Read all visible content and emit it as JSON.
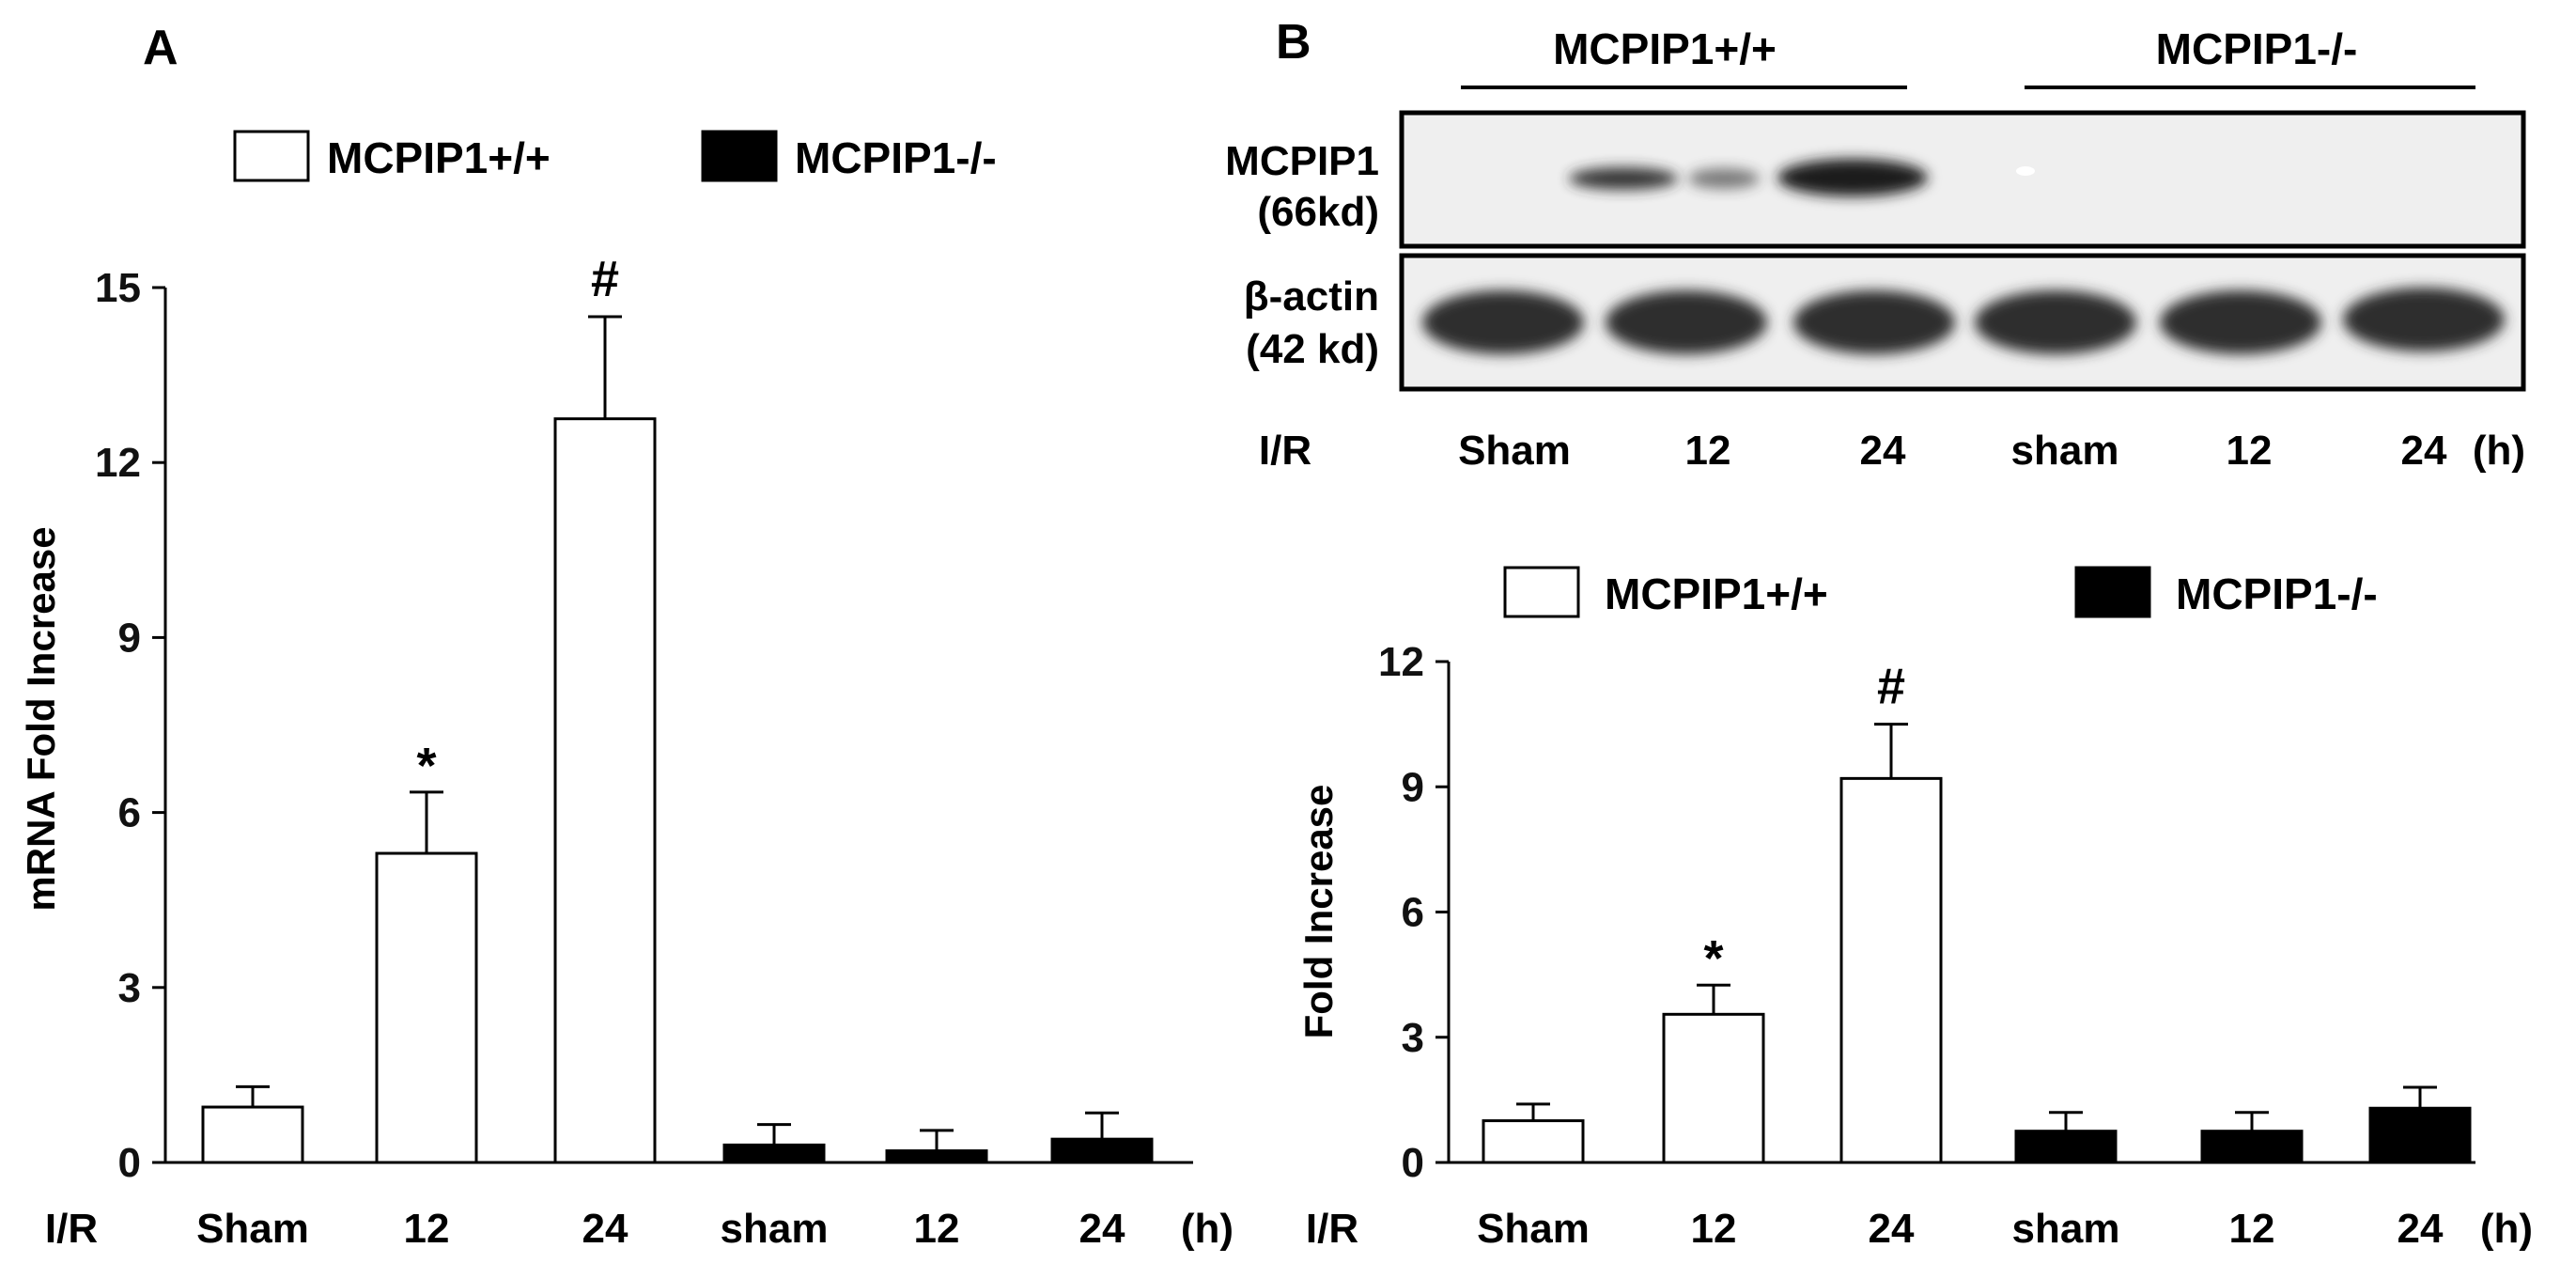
{
  "panels": {
    "A": "A",
    "B": "B"
  },
  "colors": {
    "wildtype_fill": "#ffffff",
    "knockout_fill": "#000000",
    "blot_background": "#efefef",
    "band_color": "#2e2e2e"
  },
  "blot": {
    "group_labels": [
      "MCPIP1+/+",
      "MCPIP1-/-"
    ],
    "row_labels": [
      {
        "line1": "MCPIP1",
        "line2": "(66kd)"
      },
      {
        "line1": "β-actin",
        "line2": "(42 kd)"
      }
    ],
    "lane_prefix": "I/R",
    "lanes": [
      "Sham",
      "12",
      "24",
      "sham",
      "12",
      "24"
    ],
    "unit": "(h)"
  },
  "chart_data": [
    {
      "type": "bar",
      "panel": "A",
      "title": "",
      "xlabel": "I/R",
      "x_unit": "(h)",
      "ylabel": "mRNA Fold Increase",
      "ylim": [
        0,
        15
      ],
      "yticks": [
        "0",
        "3",
        "6",
        "9",
        "12",
        "15"
      ],
      "categories": [
        "Sham",
        "12",
        "24",
        "sham",
        "12",
        "24"
      ],
      "values": [
        0.95,
        5.3,
        12.75,
        0.3,
        0.2,
        0.4
      ],
      "errors": [
        0.35,
        1.05,
        1.75,
        0.35,
        0.35,
        0.45
      ],
      "significance": [
        "",
        "*",
        "#",
        "",
        "",
        ""
      ],
      "bar_series": [
        "MCPIP1+/+",
        "MCPIP1+/+",
        "MCPIP1+/+",
        "MCPIP1-/-",
        "MCPIP1-/-",
        "MCPIP1-/-"
      ],
      "legend": [
        {
          "name": "MCPIP1+/+",
          "fill": "#ffffff"
        },
        {
          "name": "MCPIP1-/-",
          "fill": "#000000"
        }
      ],
      "legend_position": "top",
      "grid": false
    },
    {
      "type": "bar",
      "panel": "B",
      "title": "",
      "xlabel": "I/R",
      "x_unit": "(h)",
      "ylabel": "Fold Increase",
      "ylim": [
        0,
        12
      ],
      "yticks": [
        "0",
        "3",
        "6",
        "9",
        "12"
      ],
      "categories": [
        "Sham",
        "12",
        "24",
        "sham",
        "12",
        "24"
      ],
      "values": [
        1.0,
        3.55,
        9.2,
        0.75,
        0.75,
        1.3
      ],
      "errors": [
        0.4,
        0.7,
        1.3,
        0.45,
        0.45,
        0.5
      ],
      "significance": [
        "",
        "*",
        "#",
        "",
        "",
        ""
      ],
      "bar_series": [
        "MCPIP1+/+",
        "MCPIP1+/+",
        "MCPIP1+/+",
        "MCPIP1-/-",
        "MCPIP1-/-",
        "MCPIP1-/-"
      ],
      "legend": [
        {
          "name": "MCPIP1+/+",
          "fill": "#ffffff"
        },
        {
          "name": "MCPIP1-/-",
          "fill": "#000000"
        }
      ],
      "legend_position": "top",
      "grid": false
    }
  ]
}
